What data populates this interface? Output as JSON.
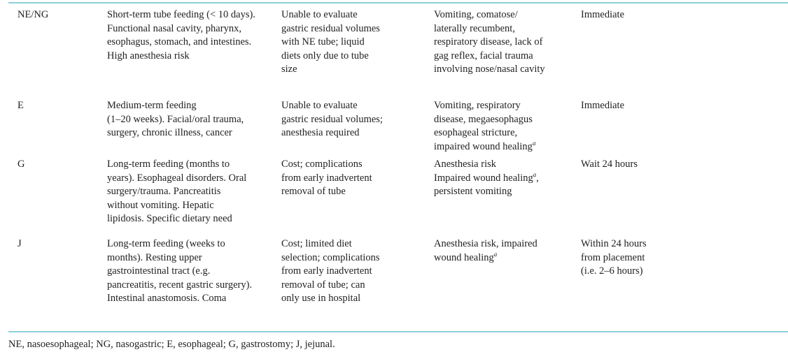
{
  "table": {
    "rows": [
      {
        "tube": "NE/NG",
        "indications": "Short-term tube feeding (< 10 days).\nFunctional nasal cavity, pharynx,\nesophagus, stomach, and intestines.\nHigh anesthesia risk",
        "disadvantages": "Unable to evaluate\ngastric residual volumes\nwith NE tube; liquid\ndiets only due to tube\nsize",
        "contraindications": "Vomiting, comatose/\nlaterally recumbent,\nrespiratory disease, lack of\ngag reflex, facial trauma\ninvolving nose/nasal cavity",
        "contra_sup": "",
        "timing": "Immediate"
      },
      {
        "tube": "E",
        "indications": "Medium-term feeding\n(1–20 weeks). Facial/oral trauma,\nsurgery, chronic illness, cancer",
        "disadvantages": "Unable to evaluate\ngastric residual volumes;\nanesthesia required",
        "contraindications": "Vomiting, respiratory\ndisease, megaesophagus\nesophageal stricture,\nimpaired wound healing",
        "contra_sup": "a",
        "timing": "Immediate"
      },
      {
        "tube": "G",
        "indications": "Long-term feeding (months to\nyears). Esophageal disorders. Oral\nsurgery/trauma. Pancreatitis\nwithout vomiting. Hepatic\nlipidosis. Specific dietary need",
        "disadvantages": "Cost; complications\nfrom early inadvertent\nremoval of tube",
        "contraindications": "Anesthesia risk\nImpaired wound healing",
        "contra_sup": "a",
        "contra_after": ",\npersistent vomiting",
        "timing": "Wait 24 hours"
      },
      {
        "tube": "J",
        "indications": "Long-term feeding (weeks to\nmonths). Resting upper\ngastrointestinal tract (e.g.\npancreatitis, recent gastric surgery).\nIntestinal anastomosis. Coma",
        "disadvantages": "Cost; limited diet\nselection; complications\nfrom early inadvertent\nremoval of tube; can\nonly use in hospital",
        "contraindications": "Anesthesia risk, impaired\nwound healing",
        "contra_sup": "a",
        "timing": "Within 24 hours\nfrom placement\n(i.e. 2–6 hours)"
      }
    ]
  },
  "footnote": "NE, nasoesophageal; NG, nasogastric; E, esophageal; G, gastrostomy; J, jejunal.",
  "colors": {
    "rule": "#8ecfd9",
    "text": "#222222"
  }
}
